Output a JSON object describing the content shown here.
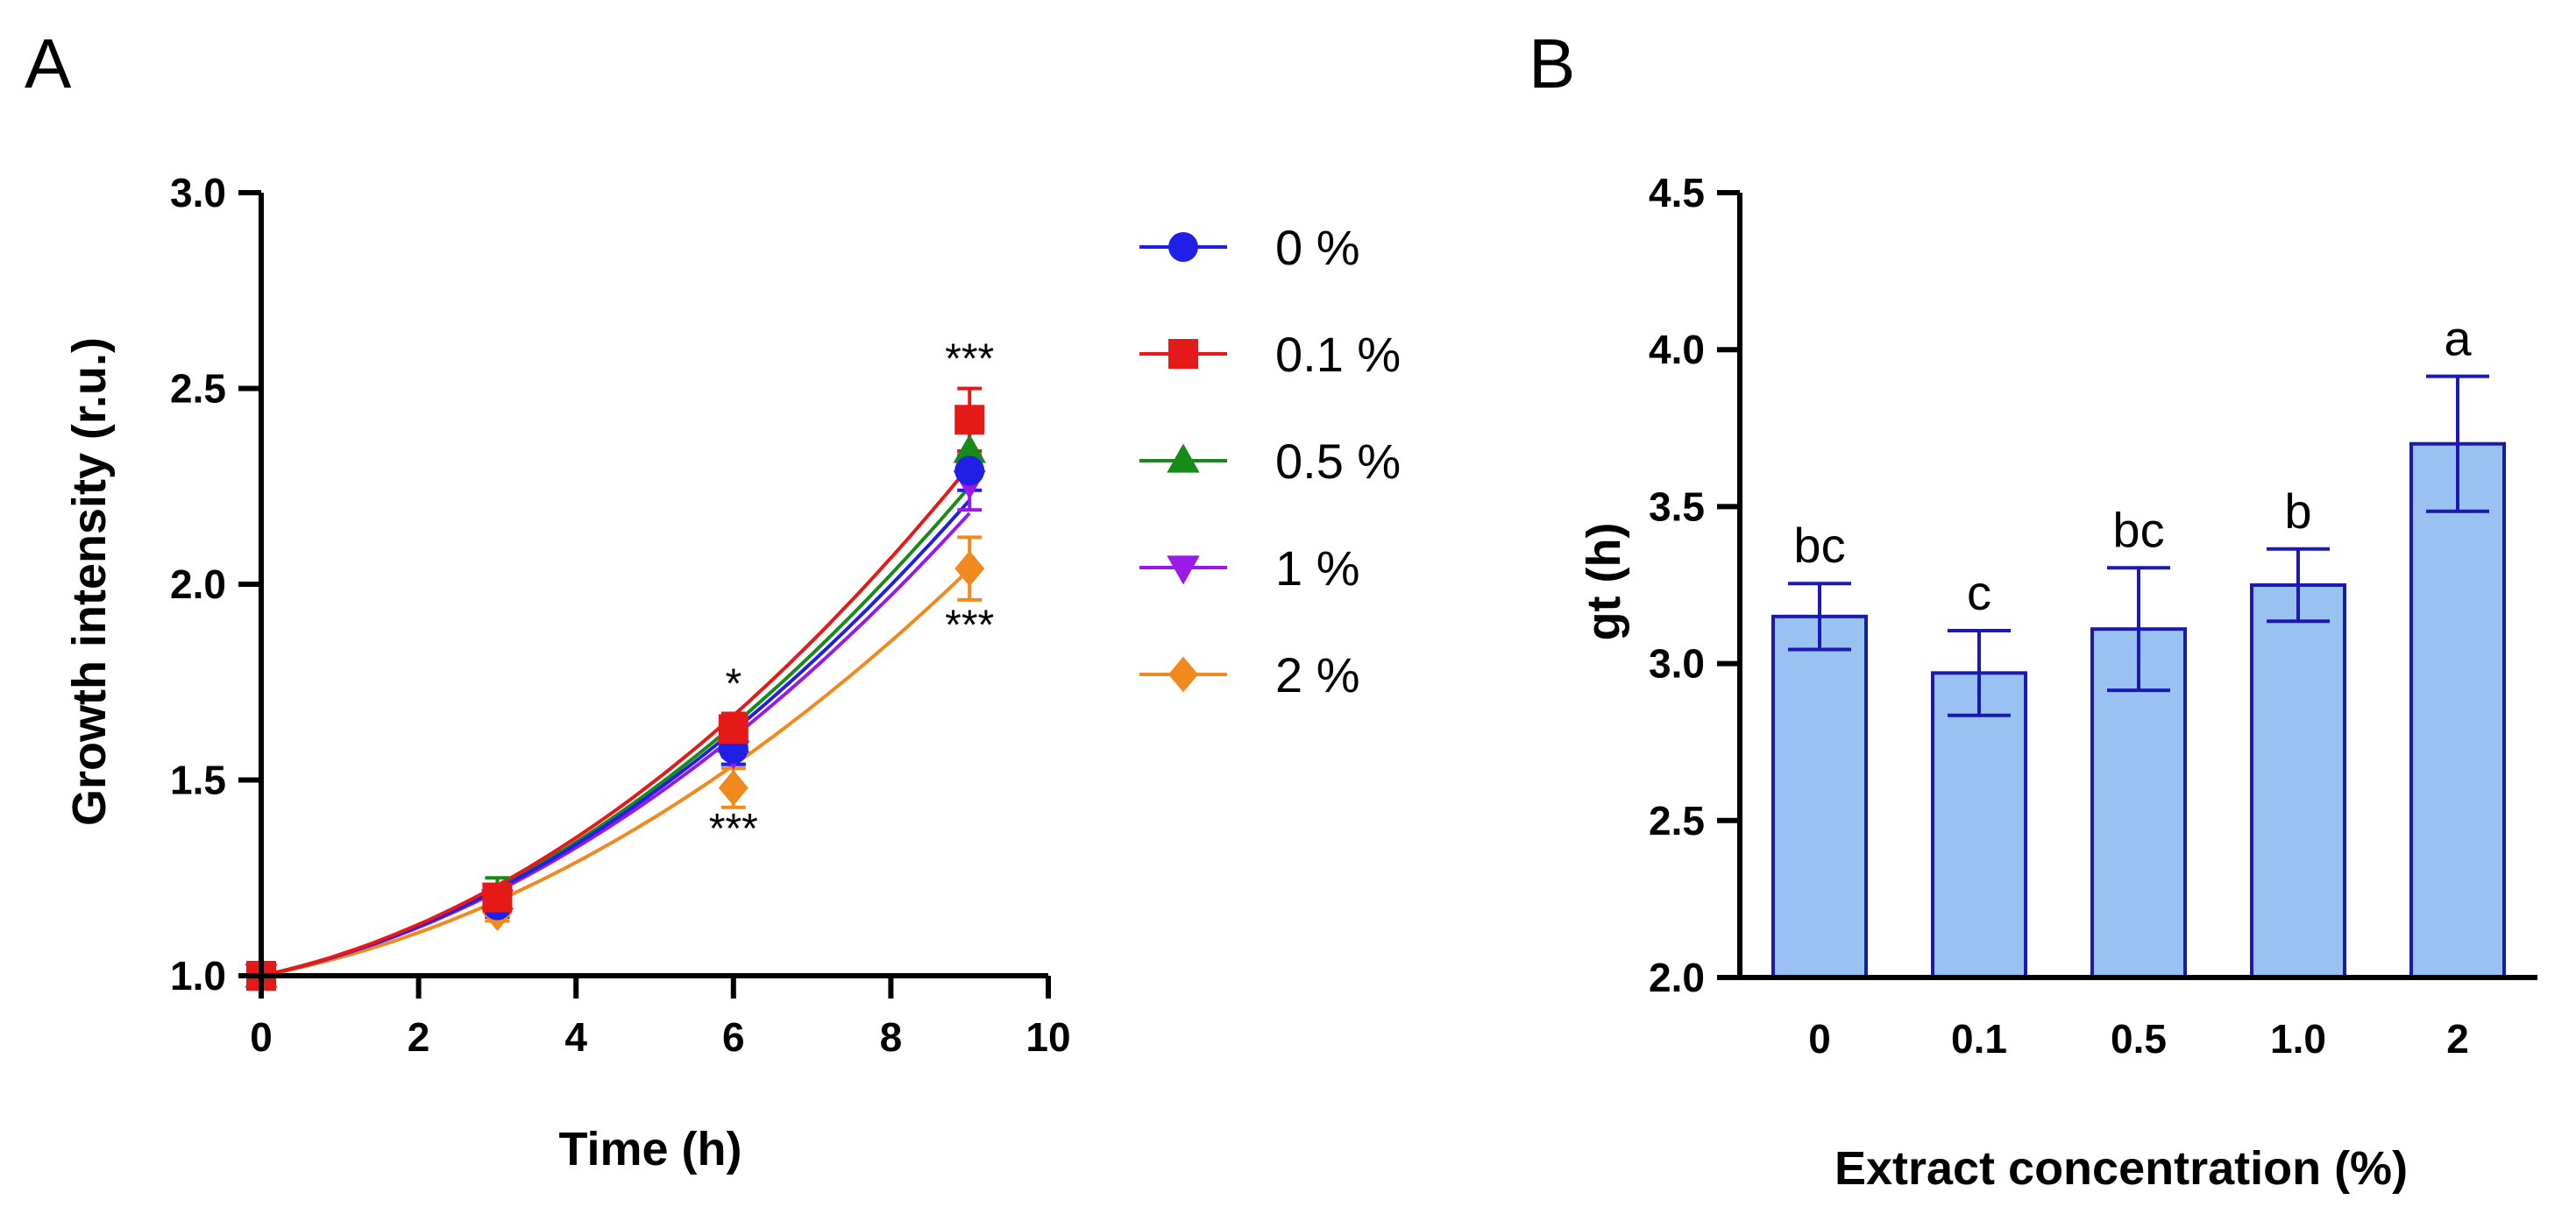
{
  "colors": {
    "axis": "#000000",
    "bar_fill": "#99C2F2",
    "bar_stroke": "#1A1AB0"
  },
  "chart_data": [
    {
      "panel": "A",
      "type": "line",
      "xlabel": "Time (h)",
      "ylabel": "Growth intensity (r.u.)",
      "xlim": [
        0,
        10
      ],
      "ylim": [
        1.0,
        3.0
      ],
      "xticks": [
        "0",
        "2",
        "4",
        "6",
        "8",
        "10"
      ],
      "yticks": [
        "1.0",
        "1.5",
        "2.0",
        "2.5",
        "3.0"
      ],
      "x": [
        0,
        3,
        6,
        9
      ],
      "legend_position": "right",
      "series": [
        {
          "name": "0 %",
          "color": "#1F1FE6",
          "marker": "circle",
          "values": [
            1.0,
            1.18,
            1.58,
            2.29
          ],
          "errors": [
            0.02,
            0.03,
            0.04,
            0.05
          ],
          "fit": [
            1.0,
            0.0428,
            0.01024
          ]
        },
        {
          "name": "0.1 %",
          "color": "#E61919",
          "marker": "square",
          "values": [
            1.0,
            1.2,
            1.63,
            2.42
          ],
          "errors": [
            0.02,
            0.03,
            0.04,
            0.08
          ],
          "fit": [
            1.0,
            0.043,
            0.0113
          ]
        },
        {
          "name": "0.5 %",
          "color": "#178A17",
          "marker": "triangle-up",
          "values": [
            1.0,
            1.2,
            1.6,
            2.34
          ],
          "errors": [
            0.02,
            0.05,
            0.04,
            0.05
          ],
          "fit": [
            1.0,
            0.0425,
            0.0107
          ]
        },
        {
          "name": "1 %",
          "color": "#9B19E6",
          "marker": "triangle-down",
          "values": [
            1.0,
            1.19,
            1.57,
            2.26
          ],
          "errors": [
            0.02,
            0.03,
            0.03,
            0.07
          ],
          "fit": [
            1.0,
            0.0422,
            0.0099
          ]
        },
        {
          "name": "2 %",
          "color": "#F08A1E",
          "marker": "diamond",
          "values": [
            1.0,
            1.16,
            1.48,
            2.04
          ],
          "errors": [
            0.02,
            0.02,
            0.05,
            0.08
          ],
          "fit": [
            1.0,
            0.038,
            0.0086
          ]
        }
      ],
      "annotations": [
        {
          "text": "*",
          "x": 6,
          "y": 1.71
        },
        {
          "text": "***",
          "x": 6,
          "y": 1.34
        },
        {
          "text": "***",
          "x": 9,
          "y": 2.54
        },
        {
          "text": "***",
          "x": 9,
          "y": 1.86
        }
      ]
    },
    {
      "panel": "B",
      "type": "bar",
      "xlabel": "Extract concentration (%)",
      "ylabel": "gt (h)",
      "ylim": [
        2.0,
        4.5
      ],
      "yticks": [
        "2.0",
        "2.5",
        "3.0",
        "3.5",
        "4.0",
        "4.5"
      ],
      "categories": [
        "0",
        "0.1",
        "0.5",
        "1.0",
        "2"
      ],
      "values": [
        3.15,
        2.97,
        3.11,
        3.25,
        3.7
      ],
      "errors": [
        0.105,
        0.135,
        0.195,
        0.115,
        0.215
      ],
      "letters": [
        "bc",
        "c",
        "bc",
        "b",
        "a"
      ]
    }
  ]
}
